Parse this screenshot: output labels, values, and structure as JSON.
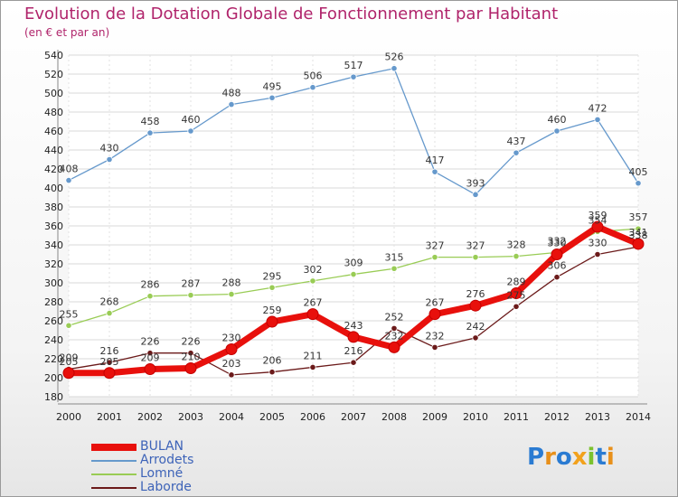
{
  "header": {
    "title": "Evolution de la Dotation Globale de Fonctionnement par Habitant",
    "subtitle": "(en € et par an)"
  },
  "brand": {
    "text": "Proxiti",
    "letters": [
      "P",
      "r",
      "o",
      "x",
      "i",
      "t",
      "i"
    ],
    "colors": [
      "#2a7bd2",
      "#e8901a",
      "#2a7bd2",
      "#f2a11c",
      "#7cc22e",
      "#2a7bd2",
      "#e8901a"
    ]
  },
  "chart_data": {
    "type": "line",
    "title": "Evolution de la Dotation Globale de Fonctionnement par Habitant",
    "subtitle": "(en € et par an)",
    "xlabel": "",
    "ylabel": "",
    "x": [
      "2000",
      "2001",
      "2002",
      "2003",
      "2004",
      "2005",
      "2006",
      "2007",
      "2008",
      "2009",
      "2010",
      "2011",
      "2012",
      "2013",
      "2014"
    ],
    "ylim": [
      180,
      540
    ],
    "yticks": [
      180,
      200,
      220,
      240,
      260,
      280,
      300,
      320,
      340,
      360,
      380,
      400,
      420,
      440,
      460,
      480,
      500,
      520,
      540
    ],
    "grid": true,
    "legend": "bottom-left",
    "series": [
      {
        "name": "BULAN",
        "color": "#e8100c",
        "values": [
          205,
          205,
          209,
          210,
          230,
          259,
          267,
          243,
          232,
          267,
          276,
          289,
          330,
          359,
          341
        ]
      },
      {
        "name": "Arrodets",
        "color": "#6699cc",
        "values": [
          408,
          430,
          458,
          460,
          488,
          495,
          506,
          517,
          526,
          417,
          393,
          437,
          460,
          472,
          405
        ]
      },
      {
        "name": "Lomné",
        "color": "#99cc55",
        "values": [
          255,
          268,
          286,
          287,
          288,
          295,
          302,
          309,
          315,
          327,
          327,
          328,
          332,
          354,
          357
        ]
      },
      {
        "name": "Laborde",
        "color": "#6b1a1a",
        "values": [
          209,
          216,
          226,
          226,
          203,
          206,
          211,
          216,
          252,
          232,
          242,
          275,
          306,
          330,
          338
        ]
      }
    ]
  }
}
